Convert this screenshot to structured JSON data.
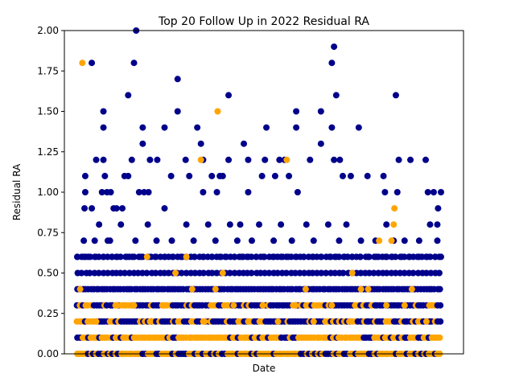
{
  "chart_data": {
    "type": "scatter",
    "title": "Top 20 Follow Up in 2022 Residual RA",
    "xlabel": "Date",
    "ylabel": "Residual RA",
    "x_ticks_shown": false,
    "x_domain": [
      0,
      1
    ],
    "ylim": [
      0,
      2
    ],
    "yticks": [
      "0.00",
      "0.25",
      "0.50",
      "0.75",
      "1.00",
      "1.25",
      "1.50",
      "1.75",
      "2.00"
    ],
    "grid": false,
    "legend": "none",
    "colors": {
      "primary": "#00008b",
      "highlight": "#ffa500"
    },
    "dense_levels": [
      0.0,
      0.1,
      0.2,
      0.3,
      0.4,
      0.5,
      0.6
    ],
    "series": [
      {
        "color": "primary",
        "points": [
          [
            0.0,
            0.6
          ],
          [
            0.018,
            0.6
          ],
          [
            0.03,
            0.6
          ],
          [
            0.051,
            0.6
          ],
          [
            0.072,
            0.6
          ],
          [
            0.095,
            0.6
          ],
          [
            0.11,
            0.6
          ],
          [
            0.136,
            0.6
          ],
          [
            0.151,
            0.6
          ],
          [
            0.174,
            0.6
          ],
          [
            0.195,
            0.6
          ],
          [
            0.214,
            0.6
          ],
          [
            0.24,
            0.6
          ],
          [
            0.262,
            0.6
          ],
          [
            0.285,
            0.6
          ],
          [
            0.3,
            0.6
          ],
          [
            0.322,
            0.6
          ],
          [
            0.346,
            0.6
          ],
          [
            0.37,
            0.6
          ],
          [
            0.392,
            0.6
          ],
          [
            0.41,
            0.6
          ],
          [
            0.432,
            0.6
          ],
          [
            0.452,
            0.6
          ],
          [
            0.47,
            0.6
          ],
          [
            0.492,
            0.6
          ],
          [
            0.512,
            0.6
          ],
          [
            0.538,
            0.6
          ],
          [
            0.56,
            0.6
          ],
          [
            0.58,
            0.6
          ],
          [
            0.603,
            0.6
          ],
          [
            0.623,
            0.6
          ],
          [
            0.647,
            0.6
          ],
          [
            0.67,
            0.6
          ],
          [
            0.694,
            0.6
          ],
          [
            0.712,
            0.6
          ],
          [
            0.735,
            0.6
          ],
          [
            0.756,
            0.6
          ],
          [
            0.778,
            0.6
          ],
          [
            0.8,
            0.6
          ],
          [
            0.822,
            0.6
          ],
          [
            0.848,
            0.6
          ],
          [
            0.866,
            0.6
          ],
          [
            0.892,
            0.6
          ],
          [
            0.914,
            0.6
          ],
          [
            0.94,
            0.6
          ],
          [
            0.962,
            0.6
          ],
          [
            0.984,
            0.6
          ],
          [
            1.0,
            0.6
          ],
          [
            0.02,
            0.9
          ],
          [
            0.022,
            1.1
          ],
          [
            0.022,
            1.0
          ],
          [
            0.04,
            1.8
          ],
          [
            0.04,
            0.9
          ],
          [
            0.052,
            1.2
          ],
          [
            0.06,
            0.8
          ],
          [
            0.068,
            1.0
          ],
          [
            0.072,
            1.5
          ],
          [
            0.072,
            1.4
          ],
          [
            0.072,
            1.2
          ],
          [
            0.076,
            1.1
          ],
          [
            0.082,
            1.0
          ],
          [
            0.084,
            0.7
          ],
          [
            0.092,
            1.0
          ],
          [
            0.1,
            0.9
          ],
          [
            0.108,
            0.9
          ],
          [
            0.124,
            0.9
          ],
          [
            0.13,
            1.1
          ],
          [
            0.14,
            1.6
          ],
          [
            0.14,
            1.1
          ],
          [
            0.15,
            1.2
          ],
          [
            0.156,
            1.8
          ],
          [
            0.162,
            2.0
          ],
          [
            0.17,
            1.0
          ],
          [
            0.18,
            1.4
          ],
          [
            0.18,
            1.3
          ],
          [
            0.184,
            1.0
          ],
          [
            0.196,
            1.0
          ],
          [
            0.2,
            1.2
          ],
          [
            0.22,
            1.2
          ],
          [
            0.24,
            1.4
          ],
          [
            0.24,
            0.9
          ],
          [
            0.258,
            1.1
          ],
          [
            0.276,
            1.7
          ],
          [
            0.276,
            1.5
          ],
          [
            0.298,
            1.2
          ],
          [
            0.308,
            1.1
          ],
          [
            0.33,
            1.4
          ],
          [
            0.34,
            1.3
          ],
          [
            0.346,
            1.2
          ],
          [
            0.346,
            1.0
          ],
          [
            0.37,
            1.1
          ],
          [
            0.384,
            1.0
          ],
          [
            0.392,
            1.1
          ],
          [
            0.4,
            1.1
          ],
          [
            0.416,
            1.6
          ],
          [
            0.416,
            1.2
          ],
          [
            0.448,
            0.8
          ],
          [
            0.458,
            1.3
          ],
          [
            0.47,
            1.2
          ],
          [
            0.47,
            1.0
          ],
          [
            0.508,
            1.1
          ],
          [
            0.516,
            1.2
          ],
          [
            0.52,
            1.4
          ],
          [
            0.544,
            1.1
          ],
          [
            0.556,
            1.2
          ],
          [
            0.57,
            1.2
          ],
          [
            0.582,
            1.1
          ],
          [
            0.602,
            1.5
          ],
          [
            0.602,
            1.4
          ],
          [
            0.606,
            1.0
          ],
          [
            0.64,
            1.2
          ],
          [
            0.67,
            1.5
          ],
          [
            0.67,
            1.3
          ],
          [
            0.7,
            1.8
          ],
          [
            0.7,
            1.4
          ],
          [
            0.706,
            1.2
          ],
          [
            0.706,
            1.9
          ],
          [
            0.712,
            1.6
          ],
          [
            0.722,
            1.2
          ],
          [
            0.73,
            1.1
          ],
          [
            0.752,
            1.1
          ],
          [
            0.774,
            1.4
          ],
          [
            0.798,
            1.1
          ],
          [
            0.842,
            1.1
          ],
          [
            0.846,
            1.0
          ],
          [
            0.876,
            1.6
          ],
          [
            0.88,
            1.0
          ],
          [
            0.884,
            1.2
          ],
          [
            0.916,
            1.2
          ],
          [
            0.958,
            1.2
          ],
          [
            0.964,
            1.0
          ],
          [
            0.98,
            1.0
          ],
          [
            0.99,
            0.8
          ],
          [
            0.992,
            0.9
          ],
          [
            1.0,
            1.0
          ],
          [
            0.018,
            0.7
          ],
          [
            0.048,
            0.7
          ],
          [
            0.09,
            0.7
          ],
          [
            0.12,
            0.8
          ],
          [
            0.16,
            0.7
          ],
          [
            0.194,
            0.8
          ],
          [
            0.218,
            0.7
          ],
          [
            0.26,
            0.7
          ],
          [
            0.3,
            0.8
          ],
          [
            0.32,
            0.7
          ],
          [
            0.36,
            0.8
          ],
          [
            0.38,
            0.7
          ],
          [
            0.42,
            0.8
          ],
          [
            0.44,
            0.7
          ],
          [
            0.48,
            0.7
          ],
          [
            0.5,
            0.8
          ],
          [
            0.54,
            0.7
          ],
          [
            0.56,
            0.8
          ],
          [
            0.59,
            0.7
          ],
          [
            0.63,
            0.8
          ],
          [
            0.65,
            0.7
          ],
          [
            0.69,
            0.8
          ],
          [
            0.72,
            0.7
          ],
          [
            0.74,
            0.8
          ],
          [
            0.78,
            0.7
          ],
          [
            0.82,
            0.7
          ],
          [
            0.85,
            0.8
          ],
          [
            0.87,
            0.7
          ],
          [
            0.9,
            0.7
          ],
          [
            0.94,
            0.7
          ],
          [
            0.97,
            0.8
          ],
          [
            0.99,
            0.7
          ]
        ]
      },
      {
        "color": "highlight",
        "points": [
          [
            0.014,
            1.8
          ],
          [
            0.192,
            0.6
          ],
          [
            0.3,
            0.6
          ],
          [
            0.34,
            1.2
          ],
          [
            0.386,
            1.5
          ],
          [
            0.4,
            0.5
          ],
          [
            0.576,
            1.2
          ],
          [
            0.628,
            0.4
          ],
          [
            0.756,
            0.5
          ],
          [
            0.78,
            0.4
          ],
          [
            0.83,
            0.7
          ],
          [
            0.864,
            0.7
          ],
          [
            0.872,
            0.9
          ],
          [
            0.87,
            0.8
          ],
          [
            0.9,
            0.3
          ],
          [
            0.008,
            0.4
          ],
          [
            0.052,
            0.2
          ],
          [
            0.11,
            0.3
          ],
          [
            0.156,
            0.3
          ],
          [
            0.2,
            0.2
          ],
          [
            0.236,
            0.3
          ],
          [
            0.27,
            0.5
          ],
          [
            0.316,
            0.4
          ],
          [
            0.35,
            0.2
          ],
          [
            0.38,
            0.4
          ],
          [
            0.43,
            0.3
          ],
          [
            0.47,
            0.2
          ],
          [
            0.51,
            0.3
          ],
          [
            0.552,
            0.2
          ],
          [
            0.6,
            0.3
          ],
          [
            0.65,
            0.2
          ],
          [
            0.7,
            0.3
          ],
          [
            0.748,
            0.2
          ],
          [
            0.8,
            0.4
          ],
          [
            0.85,
            0.3
          ],
          [
            0.92,
            0.4
          ],
          [
            0.96,
            0.2
          ]
        ]
      }
    ]
  }
}
